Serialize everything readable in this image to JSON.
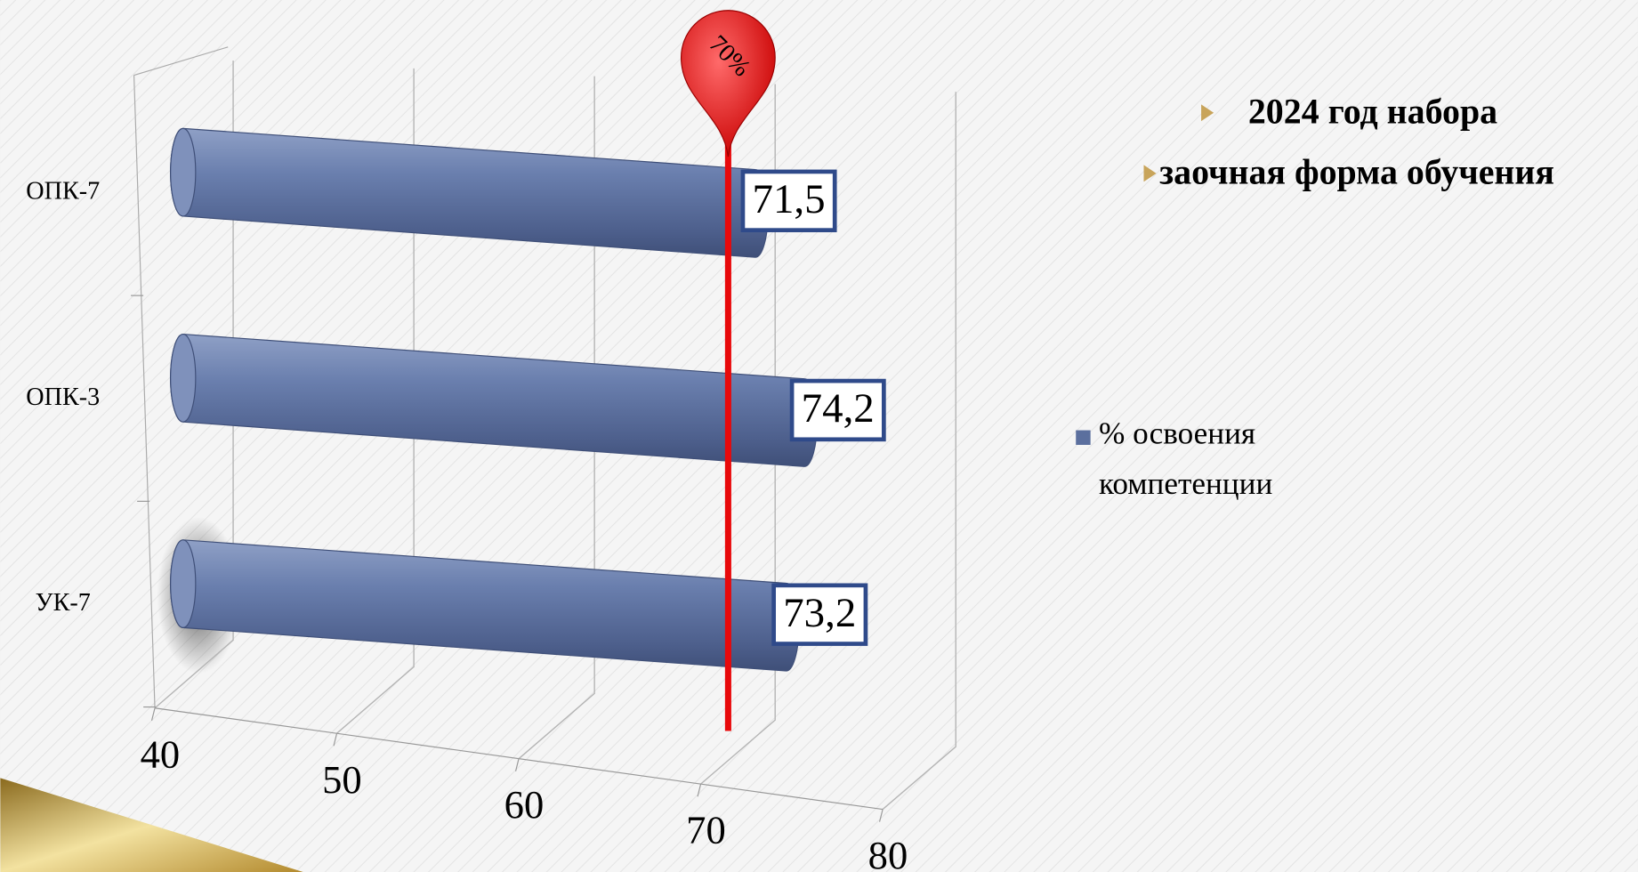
{
  "chart_data": {
    "type": "bar",
    "orientation": "horizontal",
    "categories": [
      "ОПК-7",
      "ОПК-3",
      "УК-7"
    ],
    "series": [
      {
        "name": "% освоения компетенции",
        "color": "#5b6f9e",
        "values": [
          71.5,
          74.2,
          73.2
        ],
        "value_labels": [
          "71,5",
          "74,2",
          "73,2"
        ]
      }
    ],
    "xlim": [
      40,
      80
    ],
    "xticks": [
      40,
      50,
      60,
      70,
      80
    ],
    "grid": true,
    "reference_line": {
      "value": 70,
      "label": "70%",
      "color": "#e8090b"
    },
    "legend": "right",
    "notes": [
      "2024 год набора",
      "заочная форма обучения"
    ]
  }
}
